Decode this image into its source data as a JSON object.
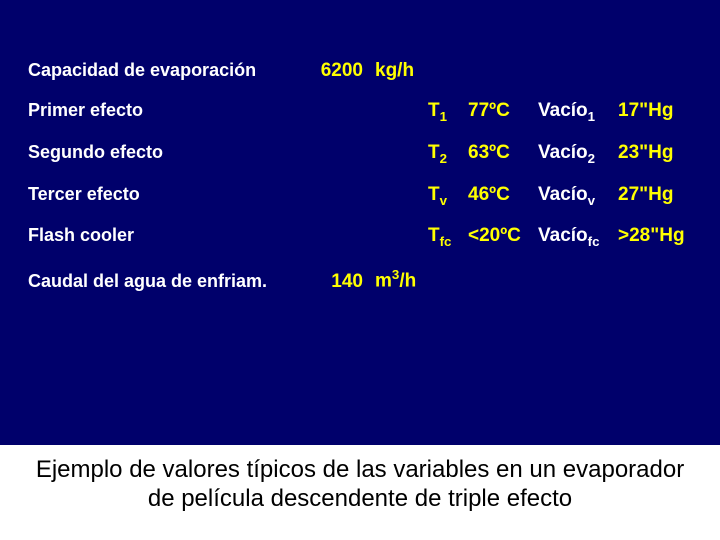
{
  "colors": {
    "slide_bg": "#00006b",
    "text_white": "#ffffff",
    "text_yellow": "#ffff00",
    "caption_bg": "#ffffff",
    "caption_text": "#000000"
  },
  "rows": [
    {
      "label": "Capacidad de evaporación",
      "val1": "6200",
      "unit1": "kg/h",
      "sym": "",
      "temp": "",
      "vac": "",
      "vacv": ""
    },
    {
      "label": "Primer efecto",
      "val1": "",
      "unit1": "",
      "sym": "T",
      "sym_sub": "1",
      "temp": "77ºC",
      "vac": "Vacío",
      "vac_sub": "1",
      "vacv": "17\"Hg"
    },
    {
      "label": "Segundo efecto",
      "val1": "",
      "unit1": "",
      "sym": "T",
      "sym_sub": "2",
      "temp": "63ºC",
      "vac": "Vacío",
      "vac_sub": "2",
      "vacv": "23\"Hg"
    },
    {
      "label": "Tercer efecto",
      "val1": "",
      "unit1": "",
      "sym": "T",
      "sym_sub": "v",
      "temp": "46ºC",
      "vac": "Vacío",
      "vac_sub": "v",
      "vacv": "27\"Hg"
    },
    {
      "label": "Flash cooler",
      "val1": "",
      "unit1": "",
      "sym": "T",
      "sym_sub": "fc",
      "temp": "<20ºC",
      "vac": "Vacío",
      "vac_sub": "fc",
      "vacv": ">28\"Hg"
    },
    {
      "label": "Caudal del agua de enfriam.",
      "val1": "140",
      "unit1_html": "m<sup>3</sup>/h",
      "sym": "",
      "temp": "",
      "vac": "",
      "vacv": ""
    }
  ],
  "caption": "Ejemplo de valores típicos de las variables en un evaporador de película descendente de triple efecto",
  "typography": {
    "label_fontsize": 18,
    "value_fontsize": 19,
    "caption_fontsize": 24,
    "font_family": "Arial",
    "weight_data": "bold",
    "weight_caption": "normal"
  }
}
